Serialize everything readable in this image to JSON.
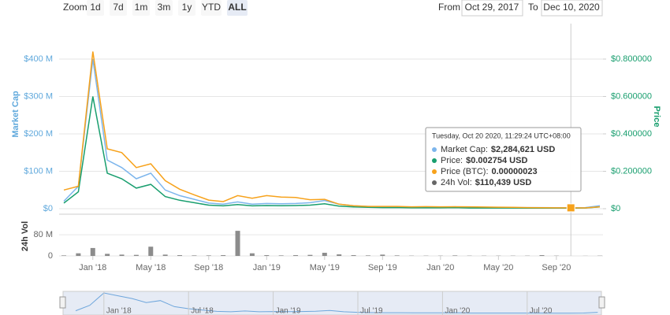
{
  "zoom": {
    "label": "Zoom",
    "buttons": [
      "1d",
      "7d",
      "1m",
      "3m",
      "1y",
      "YTD",
      "ALL"
    ],
    "active": 6
  },
  "range": {
    "from_label": "From",
    "from": "Oct 29, 2017",
    "to_label": "To",
    "to": "Dec 10, 2020"
  },
  "tooltip": {
    "title": "Tuesday, Oct 20 2020, 11:29:24 UTC+08:00",
    "rows": [
      {
        "label": "Market Cap:",
        "value": "$2,284,621 USD",
        "color": "#7cb5ec"
      },
      {
        "label": "Price:",
        "value": "$0.002754 USD",
        "color": "#189e6e"
      },
      {
        "label": "Price (BTC):",
        "value": "0.00000023",
        "color": "#f7a21b"
      },
      {
        "label": "24h Vol:",
        "value": "$110,439 USD",
        "color": "#666666"
      }
    ]
  },
  "chart_data": {
    "type": "line",
    "ylabel": "Market Cap",
    "y2label": "Price",
    "vol_label": "24h Vol",
    "x": [
      "2017-11",
      "2017-12",
      "2018-01",
      "2018-02",
      "2018-03",
      "2018-04",
      "2018-05",
      "2018-06",
      "2018-07",
      "2018-08",
      "2018-09",
      "2018-10",
      "2018-11",
      "2018-12",
      "2019-01",
      "2019-02",
      "2019-03",
      "2019-04",
      "2019-05",
      "2019-06",
      "2019-07",
      "2019-08",
      "2019-09",
      "2019-10",
      "2019-11",
      "2019-12",
      "2020-01",
      "2020-02",
      "2020-03",
      "2020-04",
      "2020-05",
      "2020-06",
      "2020-07",
      "2020-08",
      "2020-09",
      "2020-10",
      "2020-11",
      "2020-12"
    ],
    "xlim": [
      "2017-11",
      "2020-12"
    ],
    "xticks": [
      {
        "value": "2018-01",
        "label": "Jan '18"
      },
      {
        "value": "2018-05",
        "label": "May '18"
      },
      {
        "value": "2018-09",
        "label": "Sep '18"
      },
      {
        "value": "2019-01",
        "label": "Jan '19"
      },
      {
        "value": "2019-05",
        "label": "May '19"
      },
      {
        "value": "2019-09",
        "label": "Sep '19"
      },
      {
        "value": "2020-01",
        "label": "Jan '20"
      },
      {
        "value": "2020-05",
        "label": "May '20"
      },
      {
        "value": "2020-09",
        "label": "Sep '20"
      }
    ],
    "ylim": [
      0,
      500000000
    ],
    "yticks": [
      {
        "value": 0,
        "label": "$0"
      },
      {
        "value": 100000000,
        "label": "$100 M"
      },
      {
        "value": 200000000,
        "label": "$200 M"
      },
      {
        "value": 300000000,
        "label": "$300 M"
      },
      {
        "value": 400000000,
        "label": "$400 M"
      }
    ],
    "y2lim": [
      0,
      1
    ],
    "y2ticks": [
      {
        "value": 0,
        "label": "$0"
      },
      {
        "value": 0.2,
        "label": "$0.200000"
      },
      {
        "value": 0.4,
        "label": "$0.400000"
      },
      {
        "value": 0.6,
        "label": "$0.600000"
      },
      {
        "value": 0.8,
        "label": "$0.800000"
      }
    ],
    "y3lim": [
      0,
      5e-05
    ],
    "vol_ylim": [
      0,
      140000000
    ],
    "vol_yticks": [
      0,
      {
        "value": 80000000,
        "label": "80 M"
      }
    ],
    "highlight_x": "2020-10",
    "series": [
      {
        "name": "Market Cap",
        "color": "#7cb5ec",
        "axis": "y",
        "values": [
          20000000,
          60000000,
          400000000,
          130000000,
          110000000,
          80000000,
          95000000,
          50000000,
          35000000,
          25000000,
          15000000,
          12000000,
          18000000,
          12000000,
          14000000,
          13000000,
          14000000,
          16000000,
          22000000,
          12000000,
          8000000,
          6000000,
          5000000,
          5000000,
          4000000,
          4000000,
          4000000,
          5000000,
          3000000,
          3000000,
          3000000,
          3000000,
          3000000,
          3000000,
          2500000,
          2284621,
          3000000,
          8000000
        ]
      },
      {
        "name": "Price",
        "color": "#189e6e",
        "axis": "y2",
        "values": [
          0.03,
          0.09,
          0.6,
          0.19,
          0.16,
          0.11,
          0.13,
          0.065,
          0.045,
          0.032,
          0.019,
          0.015,
          0.022,
          0.015,
          0.017,
          0.016,
          0.017,
          0.019,
          0.026,
          0.014,
          0.0095,
          0.0072,
          0.006,
          0.006,
          0.0048,
          0.0048,
          0.0048,
          0.006,
          0.0036,
          0.0036,
          0.0036,
          0.0036,
          0.0035,
          0.0034,
          0.003,
          0.002754,
          0.0036,
          0.0096
        ]
      },
      {
        "name": "Price (BTC)",
        "color": "#f7a21b",
        "axis": "y3",
        "values": [
          5e-06,
          6e-06,
          4.2e-05,
          1.6e-05,
          1.5e-05,
          1.1e-05,
          1.2e-05,
          7.5e-06,
          5.2e-06,
          3.7e-06,
          2.3e-06,
          1.9e-06,
          3.5e-06,
          2.8e-06,
          3.5e-06,
          3.1e-06,
          3e-06,
          2.4e-06,
          2.5e-06,
          1.2e-06,
          8e-07,
          6e-07,
          6e-07,
          6e-07,
          5e-07,
          5.5e-07,
          5e-07,
          5.2e-07,
          5e-07,
          4.5e-07,
          4e-07,
          3.5e-07,
          3e-07,
          2.7e-07,
          2.4e-07,
          2.3e-07,
          2.1e-07,
          5e-07
        ]
      },
      {
        "name": "24h Vol",
        "color": "#8c8c8c",
        "axis": "vol",
        "values": [
          2000000,
          10000000,
          30000000,
          8000000,
          5000000,
          4000000,
          35000000,
          5000000,
          3000000,
          2000000,
          2000000,
          3000000,
          95000000,
          10000000,
          3000000,
          2000000,
          3000000,
          4000000,
          12000000,
          6000000,
          3000000,
          2000000,
          5000000,
          2000000,
          1000000,
          1000000,
          1000000,
          2000000,
          1000000,
          1000000,
          1000000,
          1000000,
          1000000,
          3000000,
          1000000,
          110439,
          500000,
          1000000
        ]
      }
    ],
    "navigator": {
      "xticks": [
        {
          "value": "2018-01",
          "label": "Jan '18"
        },
        {
          "value": "2018-07",
          "label": "Jul '18"
        },
        {
          "value": "2019-01",
          "label": "Jan '19"
        },
        {
          "value": "2019-07",
          "label": "Jul '19"
        },
        {
          "value": "2020-01",
          "label": "Jan '20"
        },
        {
          "value": "2020-07",
          "label": "Jul '20"
        }
      ]
    }
  }
}
